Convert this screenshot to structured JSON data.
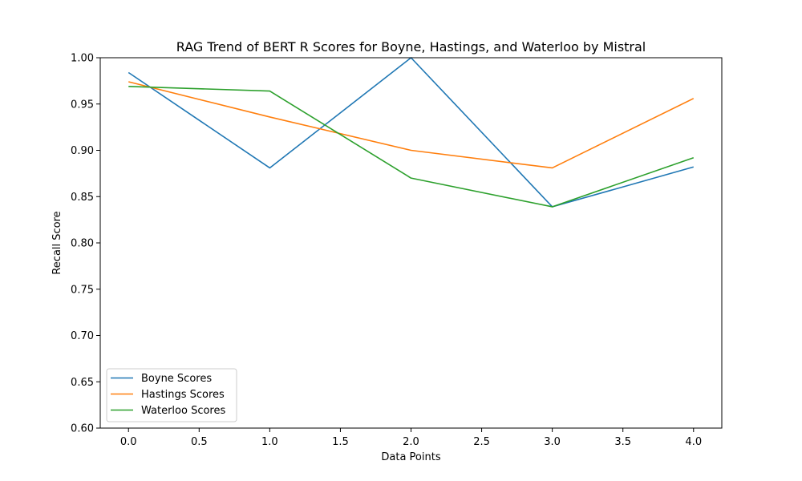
{
  "chart_data": {
    "type": "line",
    "title": "RAG Trend of BERT R Scores for Boyne, Hastings, and Waterloo by Mistral",
    "xlabel": "Data Points",
    "ylabel": "Recall Score",
    "x": [
      0,
      1,
      2,
      3,
      4
    ],
    "xlim": [
      -0.2,
      4.2
    ],
    "ylim": [
      0.6,
      1.0
    ],
    "xticks": [
      0.0,
      0.5,
      1.0,
      1.5,
      2.0,
      2.5,
      3.0,
      3.5,
      4.0
    ],
    "xtick_labels": [
      "0.0",
      "0.5",
      "1.0",
      "1.5",
      "2.0",
      "2.5",
      "3.0",
      "3.5",
      "4.0"
    ],
    "yticks": [
      0.6,
      0.65,
      0.7,
      0.75,
      0.8,
      0.85,
      0.9,
      0.95,
      1.0
    ],
    "ytick_labels": [
      "0.60",
      "0.65",
      "0.70",
      "0.75",
      "0.80",
      "0.85",
      "0.90",
      "0.95",
      "1.00"
    ],
    "grid": false,
    "legend_position": "lower-left",
    "series": [
      {
        "name": "Boyne Scores",
        "color": "#1f77b4",
        "values": [
          0.984,
          0.881,
          1.0,
          0.839,
          0.882
        ]
      },
      {
        "name": "Hastings Scores",
        "color": "#ff7f0e",
        "values": [
          0.974,
          0.936,
          0.9,
          0.881,
          0.956
        ]
      },
      {
        "name": "Waterloo Scores",
        "color": "#2ca02c",
        "values": [
          0.969,
          0.964,
          0.87,
          0.839,
          0.892
        ]
      }
    ]
  }
}
